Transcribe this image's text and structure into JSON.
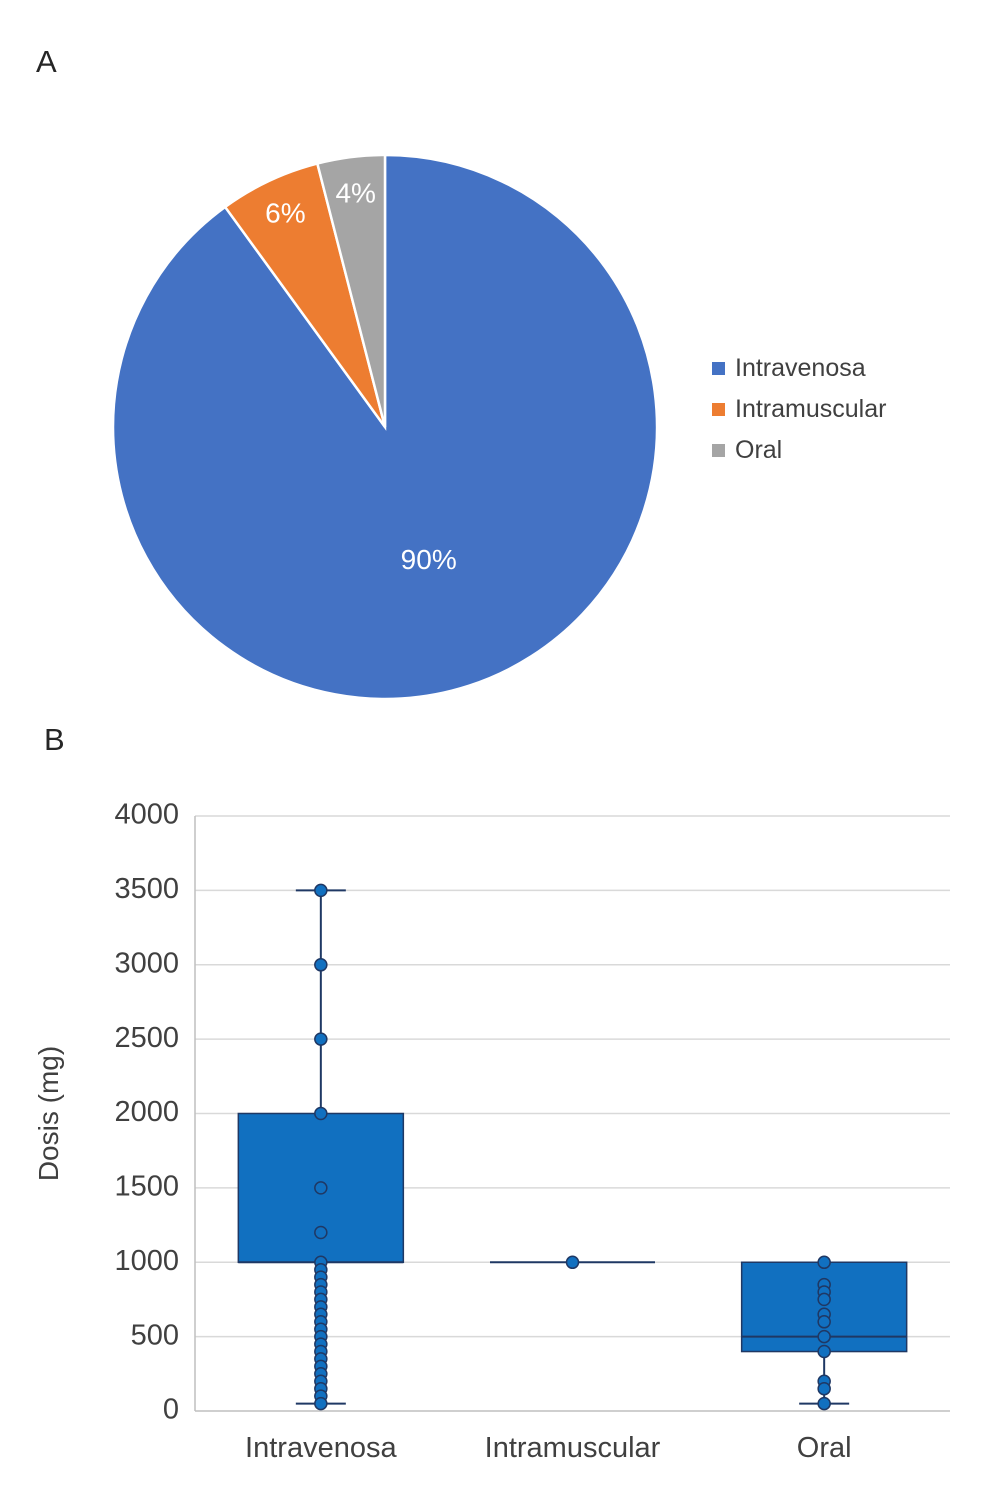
{
  "panels": {
    "a_label": "A",
    "b_label": "B"
  },
  "chart_data": [
    {
      "type": "pie",
      "panel": "A",
      "categories": [
        "Intravenosa",
        "Intramuscular",
        "Oral"
      ],
      "values": [
        90,
        6,
        4
      ],
      "slice_labels": [
        "90%",
        "6%",
        "4%"
      ],
      "colors": [
        "#4472C4",
        "#ED7D31",
        "#A5A5A5"
      ],
      "legend_position": "right",
      "start_angle_deg": 0,
      "clockwise": true
    },
    {
      "type": "box",
      "panel": "B",
      "ylabel": "Dosis (mg)",
      "ylim": [
        0,
        4000
      ],
      "yticks": [
        0,
        500,
        1000,
        1500,
        2000,
        2500,
        3000,
        3500,
        4000
      ],
      "grid": true,
      "categories": [
        "Intravenosa",
        "Intramuscular",
        "Oral"
      ],
      "box_fill": "#1170C0",
      "line_color": "#1F3864",
      "series": [
        {
          "name": "Intravenosa",
          "q1": 1000,
          "median": 1000,
          "q3": 2000,
          "whisker_low": 50,
          "whisker_high": 3500,
          "points": [
            3500,
            3000,
            2500,
            2000,
            1500,
            1200,
            1000,
            950,
            900,
            850,
            800,
            750,
            700,
            650,
            600,
            550,
            500,
            450,
            400,
            350,
            300,
            250,
            200,
            150,
            100,
            50
          ]
        },
        {
          "name": "Intramuscular",
          "q1": 1000,
          "median": 1000,
          "q3": 1000,
          "whisker_low": 1000,
          "whisker_high": 1000,
          "points": [
            1000
          ]
        },
        {
          "name": "Oral",
          "q1": 400,
          "median": 500,
          "q3": 1000,
          "whisker_low": 50,
          "whisker_high": 1000,
          "points": [
            1000,
            850,
            800,
            750,
            650,
            600,
            500,
            400,
            200,
            150,
            50
          ]
        }
      ]
    }
  ]
}
